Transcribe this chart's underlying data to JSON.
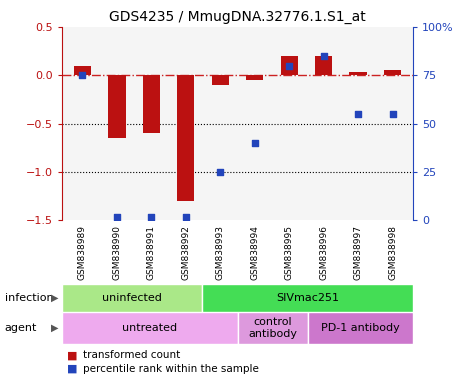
{
  "title": "GDS4235 / MmugDNA.32776.1.S1_at",
  "samples": [
    "GSM838989",
    "GSM838990",
    "GSM838991",
    "GSM838992",
    "GSM838993",
    "GSM838994",
    "GSM838995",
    "GSM838996",
    "GSM838997",
    "GSM838998"
  ],
  "red_values": [
    0.1,
    -0.65,
    -0.6,
    -1.3,
    -0.1,
    -0.05,
    0.2,
    0.2,
    0.03,
    0.05
  ],
  "blue_values": [
    75,
    2,
    2,
    2,
    25,
    40,
    80,
    85,
    55,
    55
  ],
  "ylim_left": [
    -1.5,
    0.5
  ],
  "ylim_right": [
    0,
    100
  ],
  "yticks_left": [
    -1.5,
    -1.0,
    -0.5,
    0.0,
    0.5
  ],
  "yticks_right": [
    0,
    25,
    50,
    75,
    100
  ],
  "ytick_labels_right": [
    "0",
    "25",
    "50",
    "75",
    "100%"
  ],
  "red_color": "#bb1111",
  "blue_color": "#2244bb",
  "dashed_line_color": "#cc2222",
  "infection_groups": [
    {
      "label": "uninfected",
      "start": 0,
      "end": 4,
      "color": "#aae888"
    },
    {
      "label": "SIVmac251",
      "start": 4,
      "end": 10,
      "color": "#44dd55"
    }
  ],
  "agent_groups": [
    {
      "label": "untreated",
      "start": 0,
      "end": 5,
      "color": "#eeaaee"
    },
    {
      "label": "control\nantibody",
      "start": 5,
      "end": 7,
      "color": "#dd99dd"
    },
    {
      "label": "PD-1 antibody",
      "start": 7,
      "end": 10,
      "color": "#cc77cc"
    }
  ],
  "infection_label": "infection",
  "agent_label": "agent",
  "legend_red": "transformed count",
  "legend_blue": "percentile rank within the sample",
  "bg_color": "#ffffff",
  "sample_bg": "#cccccc"
}
